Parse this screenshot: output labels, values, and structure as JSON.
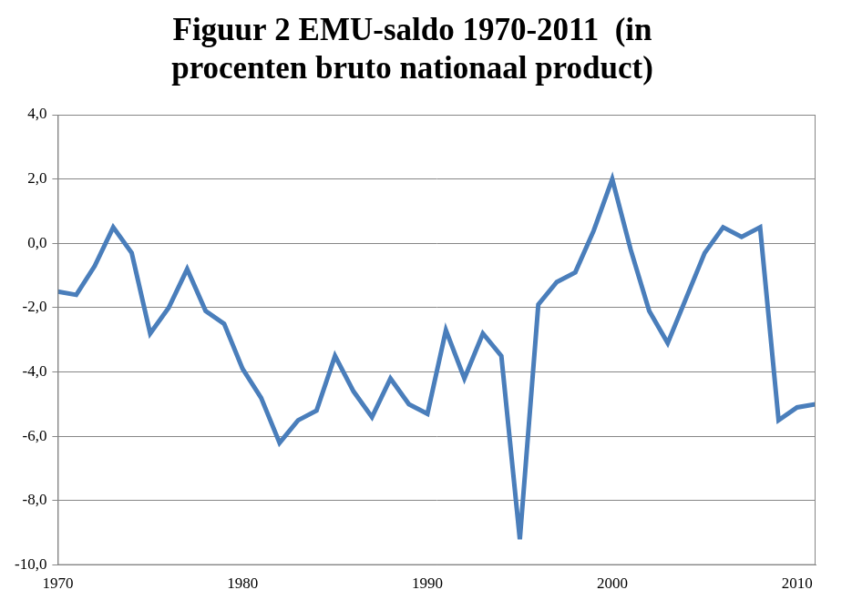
{
  "chart_data": {
    "type": "line",
    "title": [
      "Figuur 2 EMU-saldo 1970-2011  (in",
      "procenten bruto nationaal product)"
    ],
    "x": [
      1970,
      1971,
      1972,
      1973,
      1974,
      1975,
      1976,
      1977,
      1978,
      1979,
      1980,
      1981,
      1982,
      1983,
      1984,
      1985,
      1986,
      1987,
      1988,
      1989,
      1990,
      1991,
      1992,
      1993,
      1994,
      1995,
      1996,
      1997,
      1998,
      1999,
      2000,
      2001,
      2002,
      2003,
      2004,
      2005,
      2006,
      2007,
      2008,
      2009,
      2010,
      2011
    ],
    "values": [
      -1.5,
      -1.6,
      -0.7,
      0.5,
      -0.3,
      -2.8,
      -2.0,
      -0.8,
      -2.1,
      -2.5,
      -3.9,
      -4.8,
      -6.2,
      -5.5,
      -5.2,
      -3.5,
      -4.6,
      -5.4,
      -4.2,
      -5.0,
      -5.3,
      -2.7,
      -4.2,
      -2.8,
      -3.5,
      -9.2,
      -1.9,
      -1.2,
      -0.9,
      0.4,
      2.0,
      -0.2,
      -2.1,
      -3.1,
      -1.7,
      -0.3,
      0.5,
      0.2,
      0.5,
      -5.5,
      -5.1,
      -5.0
    ],
    "color": "#4a7ebb",
    "xlim": [
      1970,
      2011
    ],
    "xticks": [
      1970,
      1980,
      1990,
      2000,
      2010
    ],
    "ylim": [
      -10,
      4
    ],
    "yticks": [
      {
        "value": -10,
        "label": "-10,0"
      },
      {
        "value": -8,
        "label": "-8,0"
      },
      {
        "value": -6,
        "label": "-6,0"
      },
      {
        "value": -4,
        "label": "-4,0"
      },
      {
        "value": -2,
        "label": "-2,0"
      },
      {
        "value": 0,
        "label": "0,0"
      },
      {
        "value": 2,
        "label": "2,0"
      },
      {
        "value": 4,
        "label": "4,0"
      }
    ],
    "grid": true
  }
}
